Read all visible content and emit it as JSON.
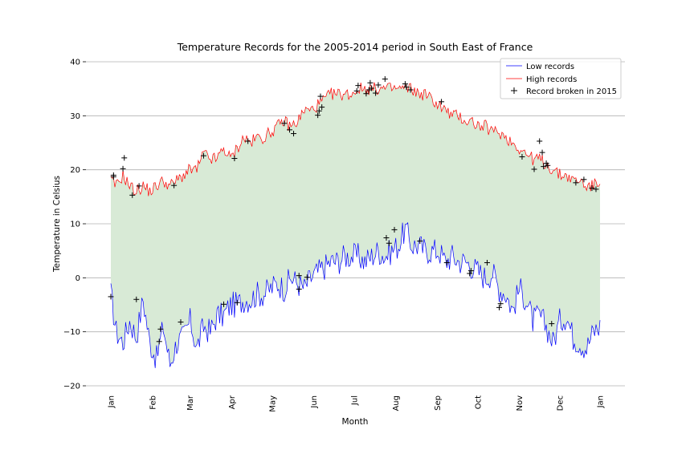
{
  "chart_data": {
    "type": "line",
    "title": "Temperature Records for the 2005-2014 period in South East of France",
    "xlabel": "Month",
    "ylabel": "Temperature in Celsius",
    "xlim": [
      1,
      365
    ],
    "ylim": [
      -20,
      40
    ],
    "y_ticks": [
      -20,
      -10,
      0,
      10,
      20,
      30,
      40
    ],
    "y_tick_labels": [
      "−20",
      "−10",
      "0",
      "10",
      "20",
      "30",
      "40"
    ],
    "x_ticks": [
      {
        "label": "Jan",
        "day": 1
      },
      {
        "label": "Feb",
        "day": 32
      },
      {
        "label": "Mar",
        "day": 60
      },
      {
        "label": "Apr",
        "day": 91
      },
      {
        "label": "May",
        "day": 121
      },
      {
        "label": "Jun",
        "day": 152
      },
      {
        "label": "Jul",
        "day": 182
      },
      {
        "label": "Aug",
        "day": 213
      },
      {
        "label": "Sep",
        "day": 244
      },
      {
        "label": "Oct",
        "day": 274
      },
      {
        "label": "Nov",
        "day": 305
      },
      {
        "label": "Dec",
        "day": 335
      },
      {
        "label": "Jan",
        "day": 365
      }
    ],
    "grid": "horizontal",
    "fill_between_color": "#d8ead6",
    "legend_position": "upper right",
    "series": [
      {
        "name": "Low records",
        "color": "#0000ff",
        "x_day": [
          1,
          5,
          10,
          15,
          20,
          25,
          30,
          35,
          40,
          45,
          50,
          55,
          60,
          65,
          70,
          75,
          80,
          85,
          90,
          95,
          100,
          105,
          110,
          115,
          120,
          125,
          130,
          135,
          140,
          145,
          150,
          155,
          160,
          165,
          170,
          175,
          180,
          185,
          190,
          195,
          200,
          205,
          210,
          215,
          220,
          225,
          230,
          235,
          240,
          245,
          250,
          255,
          260,
          265,
          270,
          275,
          280,
          285,
          290,
          295,
          300,
          305,
          310,
          315,
          320,
          325,
          330,
          335,
          340,
          345,
          350,
          355,
          360,
          365
        ],
        "values": [
          -3,
          -10,
          -12,
          -8,
          -11,
          -4,
          -12,
          -15,
          -9,
          -16,
          -12,
          -11,
          -8,
          -13,
          -9,
          -10,
          -7,
          -7,
          -5,
          -5,
          -4,
          -4,
          -3,
          -3,
          -2,
          -1,
          -2,
          0,
          -1,
          -2,
          0,
          1,
          2,
          3,
          3,
          4,
          4,
          4,
          3,
          4,
          5,
          4,
          5,
          6,
          9,
          6,
          6,
          5,
          5,
          5,
          3,
          4,
          3,
          3,
          2,
          1,
          0,
          1,
          -2,
          -3,
          -6,
          -2,
          -4,
          -8,
          -7,
          -9,
          -12,
          -8,
          -7,
          -11,
          -12,
          -13,
          -10,
          -9
        ]
      },
      {
        "name": "High records",
        "color": "#ff0000",
        "x_day": [
          1,
          5,
          10,
          15,
          20,
          25,
          30,
          35,
          40,
          45,
          50,
          55,
          60,
          65,
          70,
          75,
          80,
          85,
          90,
          95,
          100,
          105,
          110,
          115,
          120,
          125,
          130,
          135,
          140,
          145,
          150,
          155,
          160,
          165,
          170,
          175,
          180,
          185,
          190,
          195,
          200,
          205,
          210,
          215,
          220,
          225,
          230,
          235,
          240,
          245,
          250,
          255,
          260,
          265,
          270,
          275,
          280,
          285,
          290,
          295,
          300,
          305,
          310,
          315,
          320,
          325,
          330,
          335,
          340,
          345,
          350,
          355,
          360,
          365
        ],
        "values": [
          18,
          17,
          19,
          17,
          16,
          17,
          16,
          17,
          18,
          17,
          18,
          19,
          20,
          20,
          23,
          22,
          22,
          24,
          22,
          24,
          26,
          25,
          26,
          26,
          27,
          28,
          29,
          28,
          29,
          31,
          31,
          32,
          33,
          34,
          34,
          34,
          34,
          35,
          35,
          35,
          35,
          35,
          35,
          35,
          35,
          35,
          34,
          34,
          33,
          32,
          31,
          30,
          30,
          29,
          29,
          28,
          28,
          27,
          27,
          26,
          25,
          24,
          23,
          22,
          22,
          21,
          20,
          19,
          19,
          18,
          18,
          17,
          17,
          18
        ]
      }
    ],
    "scatter": {
      "name": "Record broken in 2015",
      "marker": "+",
      "color": "#000000",
      "points": [
        {
          "day": 1,
          "value": -3.5
        },
        {
          "day": 3,
          "value": 19
        },
        {
          "day": 3,
          "value": 18.7
        },
        {
          "day": 10,
          "value": 20.2
        },
        {
          "day": 11,
          "value": 22.2
        },
        {
          "day": 17,
          "value": 15.3
        },
        {
          "day": 20,
          "value": -4
        },
        {
          "day": 22,
          "value": 17
        },
        {
          "day": 37,
          "value": -11.8
        },
        {
          "day": 38,
          "value": -9.5
        },
        {
          "day": 48,
          "value": 17.1
        },
        {
          "day": 53,
          "value": -8.2
        },
        {
          "day": 70,
          "value": 22.6
        },
        {
          "day": 85,
          "value": -4.9
        },
        {
          "day": 93,
          "value": 22.1
        },
        {
          "day": 95,
          "value": -4.6
        },
        {
          "day": 103,
          "value": 25.3
        },
        {
          "day": 130,
          "value": 28.6
        },
        {
          "day": 134,
          "value": 27.4
        },
        {
          "day": 137,
          "value": 26.7
        },
        {
          "day": 141,
          "value": 0.4
        },
        {
          "day": 141,
          "value": -2.1
        },
        {
          "day": 147,
          "value": 0.1
        },
        {
          "day": 155,
          "value": 30.1
        },
        {
          "day": 156,
          "value": 30.9
        },
        {
          "day": 157,
          "value": 33.6
        },
        {
          "day": 158,
          "value": 31.6
        },
        {
          "day": 184,
          "value": 34.6
        },
        {
          "day": 185,
          "value": 35.6
        },
        {
          "day": 191,
          "value": 34.1
        },
        {
          "day": 193,
          "value": 34.8
        },
        {
          "day": 194,
          "value": 36.1
        },
        {
          "day": 195,
          "value": 35.1
        },
        {
          "day": 198,
          "value": 34.2
        },
        {
          "day": 200,
          "value": 35.7
        },
        {
          "day": 205,
          "value": 36.8
        },
        {
          "day": 206,
          "value": 7.4
        },
        {
          "day": 208,
          "value": 6.4
        },
        {
          "day": 212,
          "value": 8.9
        },
        {
          "day": 220,
          "value": 35.9
        },
        {
          "day": 221,
          "value": 35.3
        },
        {
          "day": 224,
          "value": 34.8
        },
        {
          "day": 231,
          "value": 6.8
        },
        {
          "day": 247,
          "value": 32.6
        },
        {
          "day": 251,
          "value": 2.8
        },
        {
          "day": 268,
          "value": 0.8
        },
        {
          "day": 269,
          "value": 1.3
        },
        {
          "day": 281,
          "value": 2.8
        },
        {
          "day": 290,
          "value": -5.5
        },
        {
          "day": 291,
          "value": -4.8
        },
        {
          "day": 307,
          "value": 22.4
        },
        {
          "day": 316,
          "value": 20.1
        },
        {
          "day": 320,
          "value": 25.3
        },
        {
          "day": 322,
          "value": 23.2
        },
        {
          "day": 323,
          "value": 20.6
        },
        {
          "day": 325,
          "value": 21.2
        },
        {
          "day": 326,
          "value": 20.8
        },
        {
          "day": 329,
          "value": -8.5
        },
        {
          "day": 347,
          "value": 17.6
        },
        {
          "day": 353,
          "value": 18.2
        },
        {
          "day": 359,
          "value": 16.6
        },
        {
          "day": 362,
          "value": 16.4
        }
      ]
    },
    "legend": [
      {
        "label": "Low records",
        "kind": "line",
        "color": "#0000ff"
      },
      {
        "label": "High records",
        "kind": "line",
        "color": "#ff0000"
      },
      {
        "label": "Record broken in 2015",
        "kind": "plus",
        "color": "#000000"
      }
    ]
  }
}
